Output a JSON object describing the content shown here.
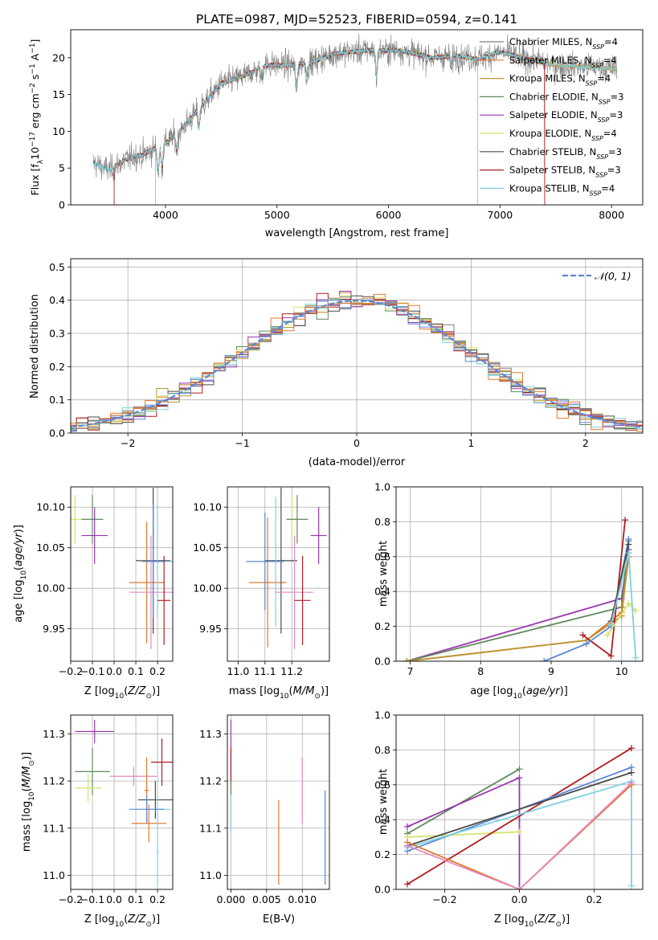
{
  "figure_title": "PLATE=0987, MJD=52523, FIBERID=0594, z=0.141",
  "colors": {
    "Chabrier MILES": "#808080",
    "Salpeter MILES": "#e07a2e",
    "Kroupa MILES": "#b89530",
    "Chabrier ELODIE": "#5e8a5e",
    "Salpeter ELODIE": "#9a35b0",
    "Kroupa ELODIE": "#d8e26a",
    "Chabrier STELIB": "#4a4a4a",
    "Salpeter STELIB": "#b01d22",
    "Kroupa STELIB": "#7fd0df",
    "extra_blue": "#5b86d6",
    "extra_pink": "#e589c0",
    "normal": "#5b86d6"
  },
  "chart_data": [
    {
      "id": "spectrum",
      "type": "line",
      "title": "PLATE=0987, MJD=52523, FIBERID=0594, z=0.141",
      "xlabel": "wavelength [Angstrom, rest frame]",
      "ylabel": "Flux [fλ10⁻¹⁷ erg cm⁻² s⁻¹ A⁻¹]",
      "xlim": [
        3150,
        8280
      ],
      "ylim": [
        0,
        23.8
      ],
      "xticks": [
        4000,
        5000,
        6000,
        7000,
        8000
      ],
      "yticks": [
        0,
        5,
        10,
        15,
        20
      ],
      "legend_position": "top-right",
      "legend": [
        {
          "label": "Chabrier MILES, N",
          "sub": "SSP",
          "tail": "=4",
          "key": "Chabrier MILES"
        },
        {
          "label": "Salpeter MILES, N",
          "sub": "SSP",
          "tail": "=4",
          "key": "Salpeter MILES"
        },
        {
          "label": "Kroupa MILES, N",
          "sub": "SSP",
          "tail": "=4",
          "key": "Kroupa MILES"
        },
        {
          "label": "Chabrier ELODIE, N",
          "sub": "SSP",
          "tail": "=3",
          "key": "Chabrier ELODIE"
        },
        {
          "label": "Salpeter ELODIE, N",
          "sub": "SSP",
          "tail": "=3",
          "key": "Salpeter ELODIE"
        },
        {
          "label": "Kroupa ELODIE, N",
          "sub": "SSP",
          "tail": "=4",
          "key": "Kroupa ELODIE"
        },
        {
          "label": "Chabrier STELIB, N",
          "sub": "SSP",
          "tail": "=3",
          "key": "Chabrier STELIB"
        },
        {
          "label": "Salpeter STELIB, N",
          "sub": "SSP",
          "tail": "=3",
          "key": "Salpeter STELIB"
        },
        {
          "label": "Kroupa STELIB, N",
          "sub": "SSP",
          "tail": "=4",
          "key": "Kroupa STELIB"
        }
      ],
      "continuum": [
        [
          3350,
          6.0
        ],
        [
          3500,
          5.0
        ],
        [
          3650,
          6.5
        ],
        [
          3800,
          6.8
        ],
        [
          3950,
          8.0
        ],
        [
          4100,
          9.5
        ],
        [
          4300,
          13.0
        ],
        [
          4500,
          16.5
        ],
        [
          4700,
          17.5
        ],
        [
          4900,
          19.0
        ],
        [
          5100,
          19.0
        ],
        [
          5300,
          19.3
        ],
        [
          5500,
          20.5
        ],
        [
          5800,
          21.0
        ],
        [
          6100,
          21.0
        ],
        [
          6400,
          20.0
        ],
        [
          6600,
          20.3
        ],
        [
          6800,
          19.8
        ],
        [
          7000,
          20.8
        ],
        [
          7200,
          20.0
        ],
        [
          7500,
          19.0
        ],
        [
          7800,
          18.7
        ],
        [
          8050,
          18.5
        ]
      ],
      "absorption_features": [
        [
          3934,
          3.5
        ],
        [
          3969,
          3.0
        ],
        [
          4102,
          2.0
        ],
        [
          4300,
          2.5
        ],
        [
          4861,
          1.5
        ],
        [
          5175,
          3.5
        ],
        [
          5270,
          1.8
        ],
        [
          5893,
          3.5
        ],
        [
          6563,
          1.5
        ]
      ]
    },
    {
      "id": "residuals",
      "type": "line",
      "xlabel": "(data-model)/error",
      "ylabel": "Normed distribution",
      "xlim": [
        -2.5,
        2.5
      ],
      "ylim": [
        0,
        0.525
      ],
      "xticks": [
        -2,
        -1,
        0,
        1,
        2
      ],
      "yticks": [
        0.0,
        0.1,
        0.2,
        0.3,
        0.4,
        0.5
      ],
      "grid": true,
      "legend_position": "top-right",
      "legend": [
        {
          "label": "𝒩(0, 1)",
          "key": "normal",
          "style": "dashed"
        }
      ],
      "bin_width": 0.1,
      "histogram_series_count": 11
    },
    {
      "id": "age-vs-Z",
      "type": "scatter",
      "xlabel": "Z [log₁₀(Z/Z⊙)]",
      "ylabel": "age  [log₁₀(age/yr)]",
      "xlim": [
        -0.2,
        0.27
      ],
      "ylim": [
        9.91,
        10.125
      ],
      "xticks": [
        -0.2,
        -0.1,
        0.0,
        0.1,
        0.2
      ],
      "yticks": [
        9.95,
        10.0,
        10.05,
        10.1
      ],
      "grid": true,
      "points": [
        {
          "x": -0.18,
          "y": 10.085,
          "xerr": 0.03,
          "yerr": 0.03,
          "color": "Kroupa ELODIE"
        },
        {
          "x": -0.1,
          "y": 10.085,
          "xerr": 0.05,
          "yerr": 0.03,
          "color": "Chabrier ELODIE"
        },
        {
          "x": -0.09,
          "y": 10.065,
          "xerr": 0.06,
          "yerr": 0.035,
          "color": "Salpeter ELODIE"
        },
        {
          "x": 0.15,
          "y": 10.007,
          "xerr": 0.08,
          "yerr": 0.075,
          "color": "Salpeter MILES"
        },
        {
          "x": 0.18,
          "y": 10.034,
          "xerr": 0.08,
          "yerr": 0.09,
          "color": "Chabrier STELIB"
        },
        {
          "x": 0.17,
          "y": 9.995,
          "xerr": 0.1,
          "yerr": 0.07,
          "color": "extra_pink"
        },
        {
          "x": 0.2,
          "y": 10.033,
          "xerr": 0.07,
          "yerr": 0.07,
          "color": "Kroupa STELIB"
        },
        {
          "x": 0.18,
          "y": 10.033,
          "xerr": 0.05,
          "yerr": 0.07,
          "color": "extra_blue"
        },
        {
          "x": 0.23,
          "y": 9.985,
          "xerr": 0.03,
          "yerr": 0.055,
          "color": "Salpeter STELIB"
        }
      ]
    },
    {
      "id": "age-vs-mass",
      "type": "scatter",
      "xlabel": "mass [log₁₀(M/M⊙)]",
      "ylabel": "",
      "xlim": [
        10.96,
        11.34
      ],
      "ylim": [
        9.91,
        10.125
      ],
      "xticks": [
        11.0,
        11.1,
        11.2
      ],
      "yticks": [
        9.95,
        10.0,
        10.05,
        10.1
      ],
      "grid": true,
      "points": [
        {
          "x": 11.2,
          "y": 10.085,
          "xerr": 0.02,
          "yerr": 0.03,
          "color": "Kroupa ELODIE"
        },
        {
          "x": 11.22,
          "y": 10.085,
          "xerr": 0.04,
          "yerr": 0.03,
          "color": "Chabrier ELODIE"
        },
        {
          "x": 11.3,
          "y": 10.065,
          "xerr": 0.03,
          "yerr": 0.035,
          "color": "Salpeter ELODIE"
        },
        {
          "x": 11.11,
          "y": 10.007,
          "xerr": 0.07,
          "yerr": 0.08,
          "color": "Salpeter MILES"
        },
        {
          "x": 11.16,
          "y": 10.034,
          "xerr": 0.06,
          "yerr": 0.09,
          "color": "Chabrier STELIB"
        },
        {
          "x": 11.21,
          "y": 9.995,
          "xerr": 0.07,
          "yerr": 0.07,
          "color": "extra_pink"
        },
        {
          "x": 11.14,
          "y": 10.033,
          "xerr": 0.03,
          "yerr": 0.08,
          "color": "Kroupa STELIB"
        },
        {
          "x": 11.1,
          "y": 10.033,
          "xerr": 0.07,
          "yerr": 0.06,
          "color": "extra_blue"
        },
        {
          "x": 11.24,
          "y": 9.985,
          "xerr": 0.03,
          "yerr": 0.055,
          "color": "Salpeter STELIB"
        }
      ]
    },
    {
      "id": "massweight-vs-age",
      "type": "line",
      "xlabel": "age  [log₁₀(age/yr)]",
      "ylabel": "mass weight",
      "xlim": [
        6.8,
        10.3
      ],
      "ylim": [
        0,
        1.0
      ],
      "xticks": [
        7,
        8,
        9,
        10
      ],
      "yticks": [
        0.0,
        0.2,
        0.4,
        0.6,
        0.8,
        1.0
      ],
      "grid": true,
      "series": [
        {
          "color": "Salpeter ELODIE",
          "points": [
            [
              6.95,
              0.0
            ],
            [
              10.0,
              0.36
            ],
            [
              10.1,
              0.64
            ]
          ]
        },
        {
          "color": "Chabrier ELODIE",
          "points": [
            [
              6.95,
              0.0
            ],
            [
              10.0,
              0.31
            ],
            [
              10.1,
              0.69
            ]
          ]
        },
        {
          "color": "Salpeter MILES",
          "points": [
            [
              6.95,
              0.0
            ],
            [
              9.5,
              0.12
            ],
            [
              10.0,
              0.28
            ],
            [
              10.1,
              0.6
            ]
          ]
        },
        {
          "color": "Kroupa MILES",
          "points": [
            [
              6.95,
              0.0
            ],
            [
              9.5,
              0.12
            ],
            [
              10.0,
              0.26
            ],
            [
              10.1,
              0.62
            ]
          ]
        },
        {
          "color": "Salpeter STELIB",
          "points": [
            [
              9.45,
              0.15
            ],
            [
              9.85,
              0.03
            ],
            [
              10.05,
              0.81
            ]
          ]
        },
        {
          "color": "extra_blue",
          "points": [
            [
              8.9,
              0.0
            ],
            [
              9.5,
              0.1
            ],
            [
              9.85,
              0.2
            ],
            [
              10.1,
              0.7
            ]
          ]
        },
        {
          "color": "Chabrier STELIB",
          "points": [
            [
              9.85,
              0.23
            ],
            [
              10.1,
              0.67
            ]
          ]
        },
        {
          "color": "Kroupa ELODIE",
          "points": [
            [
              9.8,
              0.15
            ],
            [
              10.1,
              0.33
            ],
            [
              10.2,
              0.29
            ]
          ]
        },
        {
          "color": "Kroupa STELIB",
          "points": [
            [
              9.85,
              0.21
            ],
            [
              10.1,
              0.62
            ],
            [
              10.2,
              0.02
            ]
          ]
        }
      ]
    },
    {
      "id": "mass-vs-Z",
      "type": "scatter",
      "xlabel": "Z [log₁₀(Z/Z⊙)]",
      "ylabel": "mass [log₁₀(M/M⊙)]",
      "xlim": [
        -0.2,
        0.27
      ],
      "ylim": [
        10.97,
        11.34
      ],
      "xticks": [
        -0.2,
        -0.1,
        0.0,
        0.1,
        0.2
      ],
      "yticks": [
        11.0,
        11.1,
        11.2,
        11.3
      ],
      "grid": true,
      "points": [
        {
          "x": -0.09,
          "y": 11.305,
          "xerr": 0.09,
          "yerr": 0.025,
          "color": "Salpeter ELODIE"
        },
        {
          "x": -0.1,
          "y": 11.22,
          "xerr": 0.08,
          "yerr": 0.05,
          "color": "Chabrier ELODIE"
        },
        {
          "x": -0.12,
          "y": 11.185,
          "xerr": 0.06,
          "yerr": 0.03,
          "color": "Kroupa ELODIE"
        },
        {
          "x": 0.09,
          "y": 11.21,
          "xerr": 0.11,
          "yerr": 0.02,
          "color": "extra_pink"
        },
        {
          "x": 0.15,
          "y": 11.18,
          "xerr": 0.01,
          "yerr": 0.07,
          "color": "Salpeter MILES"
        },
        {
          "x": 0.19,
          "y": 11.16,
          "xerr": 0.08,
          "yerr": 0.04,
          "color": "Chabrier STELIB"
        },
        {
          "x": 0.2,
          "y": 11.14,
          "xerr": 0.06,
          "yerr": 0.03,
          "color": "Kroupa STELIB"
        },
        {
          "x": 0.15,
          "y": 11.14,
          "xerr": 0.08,
          "yerr": 0.03,
          "color": "extra_blue"
        },
        {
          "x": 0.16,
          "y": 11.11,
          "xerr": 0.08,
          "yerr": 0.04,
          "color": "Salpeter MILES"
        },
        {
          "x": 0.22,
          "y": 11.24,
          "xerr": 0.05,
          "yerr": 0.05,
          "color": "Salpeter STELIB"
        },
        {
          "x": 0.2,
          "y": 11.05,
          "xerr": 0.005,
          "yerr": 0.07,
          "color": "Kroupa STELIB"
        }
      ]
    },
    {
      "id": "mass-vs-EBV",
      "type": "scatter",
      "xlabel": "E(B-V)",
      "ylabel": "",
      "xlim": [
        -0.0005,
        0.0138
      ],
      "ylim": [
        10.97,
        11.34
      ],
      "xticks": [
        0.0,
        0.005,
        0.01
      ],
      "xticklabels": [
        "0.000",
        "0.005",
        "0.010"
      ],
      "yticks": [
        11.0,
        11.1,
        11.2,
        11.3
      ],
      "grid": true,
      "points": [
        {
          "x": 0.0,
          "y": 11.26,
          "yerr": 0.07,
          "color": "Salpeter ELODIE"
        },
        {
          "x": 0.0,
          "y": 11.22,
          "yerr": 0.05,
          "color": "Salpeter STELIB"
        },
        {
          "x": 0.0,
          "y": 11.15,
          "yerr": 0.05,
          "color": "Chabrier ELODIE"
        },
        {
          "x": 0.0,
          "y": 11.13,
          "yerr": 0.04,
          "color": "Kroupa STELIB"
        },
        {
          "x": 0.0067,
          "y": 11.07,
          "yerr": 0.09,
          "color": "Salpeter MILES"
        },
        {
          "x": 0.01,
          "y": 11.18,
          "yerr": 0.07,
          "color": "extra_pink"
        },
        {
          "x": 0.0132,
          "y": 11.08,
          "yerr": 0.1,
          "color": "extra_blue"
        }
      ]
    },
    {
      "id": "massweight-vs-Z",
      "type": "line",
      "xlabel": "Z [log₁₀(Z/Z⊙)]",
      "ylabel": "mass weight",
      "xlim": [
        -0.33,
        0.33
      ],
      "ylim": [
        0,
        1.0
      ],
      "xticks": [
        -0.2,
        0.0,
        0.2
      ],
      "yticks": [
        0.0,
        0.2,
        0.4,
        0.6,
        0.8,
        1.0
      ],
      "grid": true,
      "series": [
        {
          "color": "Chabrier ELODIE",
          "points": [
            [
              -0.3,
              0.32
            ],
            [
              0.0,
              0.69
            ]
          ]
        },
        {
          "color": "Salpeter ELODIE",
          "points": [
            [
              -0.3,
              0.36
            ],
            [
              0.0,
              0.64
            ],
            [
              0.0,
              0.0
            ]
          ]
        },
        {
          "color": "Kroupa ELODIE",
          "points": [
            [
              -0.3,
              0.3
            ],
            [
              0.0,
              0.33
            ]
          ]
        },
        {
          "color": "Salpeter STELIB",
          "points": [
            [
              -0.3,
              0.03
            ],
            [
              0.3,
              0.81
            ]
          ]
        },
        {
          "color": "extra_blue",
          "points": [
            [
              -0.3,
              0.22
            ],
            [
              0.3,
              0.7
            ]
          ]
        },
        {
          "color": "Chabrier STELIB",
          "points": [
            [
              -0.3,
              0.25
            ],
            [
              0.3,
              0.67
            ]
          ]
        },
        {
          "color": "Kroupa STELIB",
          "points": [
            [
              -0.3,
              0.24
            ],
            [
              0.3,
              0.62
            ],
            [
              0.3,
              0.02
            ]
          ]
        },
        {
          "color": "Salpeter MILES",
          "points": [
            [
              -0.3,
              0.27
            ],
            [
              0.0,
              0.0
            ],
            [
              0.3,
              0.6
            ]
          ]
        },
        {
          "color": "extra_pink",
          "points": [
            [
              -0.3,
              0.25
            ],
            [
              0.0,
              0.0
            ],
            [
              0.3,
              0.61
            ]
          ]
        }
      ]
    }
  ]
}
